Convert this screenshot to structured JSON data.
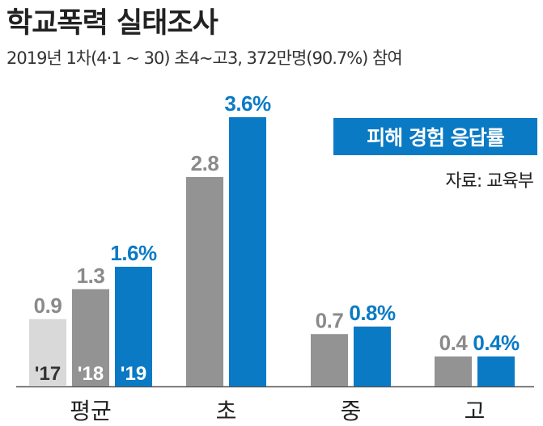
{
  "title": "학교폭력 실태조사",
  "subtitle": "2019년 1차(4·1 ~ 30) 초4~고3, 372만명(90.7%) 참여",
  "legend_label": "피해 경험 응답률",
  "source": "자료: 교육부",
  "colors": {
    "y2017": "#d9d9d9",
    "y2018": "#939393",
    "y2019": "#0a7ac5",
    "label_gray": "#8a8a8a",
    "label_blue": "#0a7ac5"
  },
  "chart_data": {
    "type": "bar",
    "title": "학교폭력 실태조사",
    "subtitle": "2019년 1차(4·1 ~ 30) 초4~고3, 372만명(90.7%) 참여",
    "categories": [
      "평균",
      "초",
      "중",
      "고"
    ],
    "series": [
      {
        "name": "'17",
        "values": [
          0.9,
          null,
          null,
          null
        ],
        "labels": [
          "0.9",
          "",
          "",
          ""
        ]
      },
      {
        "name": "'18",
        "values": [
          1.3,
          2.8,
          0.7,
          0.4
        ],
        "labels": [
          "1.3",
          "2.8",
          "0.7",
          "0.4"
        ]
      },
      {
        "name": "'19",
        "values": [
          1.6,
          3.6,
          0.8,
          0.4
        ],
        "labels": [
          "1.6%",
          "3.6%",
          "0.8%",
          "0.4%"
        ]
      }
    ],
    "ylim": [
      0,
      3.6
    ],
    "grid": false,
    "legend": "top-right"
  }
}
